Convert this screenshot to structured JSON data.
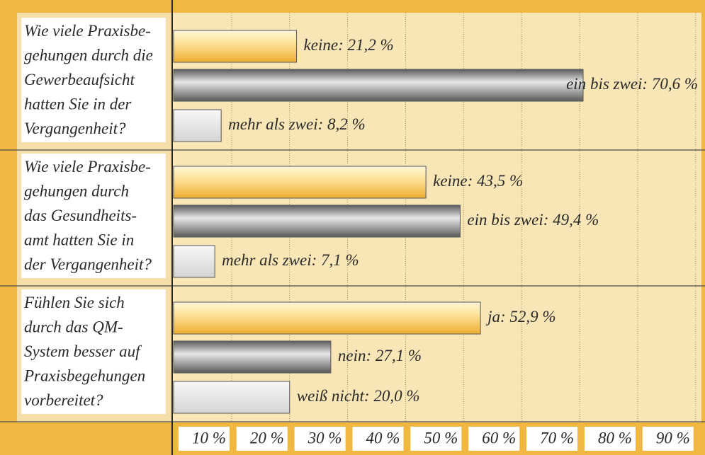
{
  "chart_data": {
    "type": "grouped-hbar",
    "colors": [
      "#efae32",
      "#5a5a5a",
      "#d4d4d4"
    ],
    "groups": [
      {
        "question": [
          "Wie viele Praxisbe-",
          "gehungen durch die",
          "Gewerbeaufsicht",
          "hatten Sie in der",
          "Vergangenheit?"
        ],
        "values": [
          21.2,
          70.6,
          8.2
        ],
        "value_labels": [
          "keine: 21,2 %",
          "ein bis zwei: 70,6 %",
          "mehr als zwei: 8,2 %"
        ]
      },
      {
        "question": [
          "Wie viele Praxisbe-",
          "gehungen durch",
          "das Gesundheits-",
          "amt hatten Sie in",
          "der Vergangenheit?"
        ],
        "values": [
          43.5,
          49.4,
          7.1
        ],
        "value_labels": [
          "keine: 43,5 %",
          "ein bis zwei: 49,4 %",
          "mehr als zwei: 7,1 %"
        ]
      },
      {
        "question": [
          "Fühlen Sie sich",
          "durch das QM-",
          "System besser auf",
          "Praxisbegehungen",
          "vorbereitet?"
        ],
        "values": [
          52.9,
          27.1,
          20.0
        ],
        "value_labels": [
          "ja: 52,9 %",
          "nein: 27,1 %",
          "weiß nicht: 20,0 %"
        ]
      }
    ],
    "xlim": [
      0,
      91
    ],
    "xticks": [
      {
        "value": 10,
        "label": "10 %"
      },
      {
        "value": 20,
        "label": "20 %"
      },
      {
        "value": 30,
        "label": "30 %"
      },
      {
        "value": 40,
        "label": "40 %"
      },
      {
        "value": 50,
        "label": "50 %"
      },
      {
        "value": 60,
        "label": "60 %"
      },
      {
        "value": 70,
        "label": "70 %"
      },
      {
        "value": 80,
        "label": "80 %"
      },
      {
        "value": 90,
        "label": "90 %"
      }
    ],
    "grid": true
  }
}
